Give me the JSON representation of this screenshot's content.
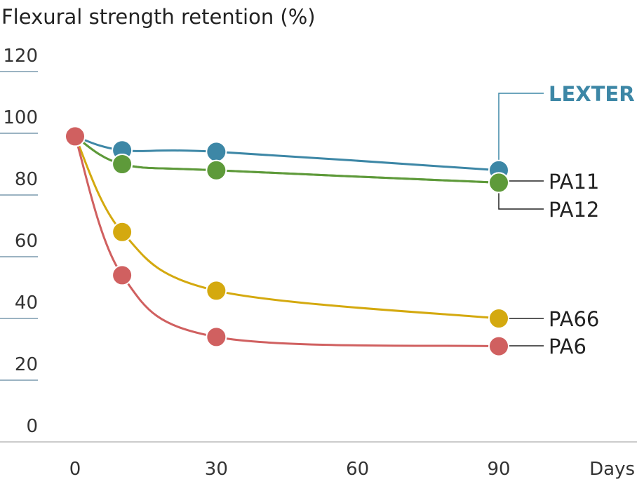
{
  "chart_data": {
    "type": "line",
    "title": "Flexural strength retention (%)",
    "x_label": "Days",
    "x": [
      0,
      10,
      30,
      90
    ],
    "xlim": [
      0,
      90
    ],
    "xticks": [
      0,
      30,
      60,
      90
    ],
    "ylim": [
      0,
      120
    ],
    "yticks": [
      0,
      20,
      40,
      60,
      80,
      100,
      120
    ],
    "series": [
      {
        "name": "LEXTER",
        "color": "#3d87a6",
        "values": [
          99,
          94.5,
          94,
          88
        ]
      },
      {
        "name": "PA11",
        "color": "#5e9a3a",
        "values": [
          99,
          90,
          88,
          84
        ]
      },
      {
        "name": "PA12",
        "color": "#5e9a3a",
        "values": [
          99,
          90,
          88,
          84
        ]
      },
      {
        "name": "PA66",
        "color": "#d4a90f",
        "values": [
          99,
          68,
          49,
          40
        ]
      },
      {
        "name": "PA6",
        "color": "#d06060",
        "values": [
          99,
          54,
          34,
          31
        ]
      }
    ]
  }
}
